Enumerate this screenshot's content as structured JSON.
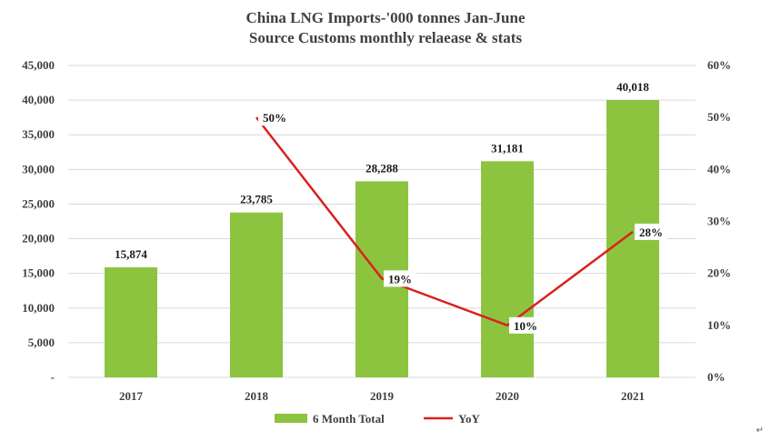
{
  "chart_data": {
    "type": "bar",
    "title": "China LNG Imports-'000 tonnes Jan-June",
    "subtitle": "Source Customs monthly relaease & stats",
    "categories": [
      "2017",
      "2018",
      "2019",
      "2020",
      "2021"
    ],
    "series": [
      {
        "name": "6 Month Total",
        "type": "bar",
        "axis": "left",
        "values": [
          15874,
          23785,
          28288,
          31181,
          40018
        ],
        "labels": [
          "15,874",
          "23,785",
          "28,288",
          "31,181",
          "40,018"
        ]
      },
      {
        "name": "YoY",
        "type": "line",
        "axis": "right",
        "values": [
          null,
          50,
          19,
          10,
          28
        ],
        "labels": [
          "",
          "50%",
          "19%",
          "10%",
          "28%"
        ]
      }
    ],
    "y_left": {
      "ylim": [
        0,
        45000
      ],
      "ticks": [
        "-",
        "5,000",
        "10,000",
        "15,000",
        "20,000",
        "25,000",
        "30,000",
        "35,000",
        "40,000",
        "45,000"
      ]
    },
    "y_right": {
      "ylim": [
        0,
        60
      ],
      "ticks": [
        "0%",
        "10%",
        "20%",
        "30%",
        "40%",
        "50%",
        "60%"
      ]
    },
    "grid": true,
    "legend_position": "bottom",
    "colors": {
      "bar": "#8cc43f",
      "line": "#d9211f",
      "grid": "#d9d9d9",
      "text": "#404040"
    }
  }
}
